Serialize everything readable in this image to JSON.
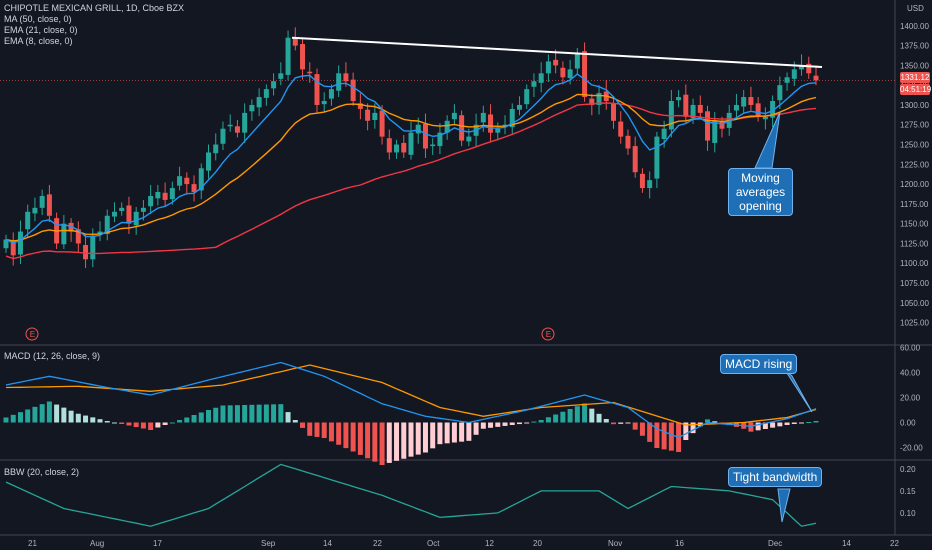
{
  "chart_data": {
    "type": "candlestick",
    "title": "CHIPOTLE MEXICAN GRILL, 1D, Cboe BZX",
    "currency": "USD",
    "price_axis": {
      "ticks": [
        1025,
        1050,
        1075,
        1100,
        1125,
        1150,
        1175,
        1200,
        1225,
        1250,
        1275,
        1300,
        1325,
        1350,
        1375,
        1400
      ],
      "ylim": [
        1003,
        1420
      ]
    },
    "x_axis_labels": [
      "21",
      "Aug",
      "17",
      "Sep",
      "14",
      "22",
      "Oct",
      "12",
      "20",
      "Nov",
      "16",
      "Dec",
      "14",
      "22"
    ],
    "last_price": "1331.12",
    "countdown": "04:51:19",
    "trendline": {
      "from": [
        "Sep 1",
        1385
      ],
      "to": [
        "Dec 10",
        1348
      ]
    },
    "candles": {
      "colors": {
        "up": "#26a69a",
        "down": "#ef5350"
      },
      "closes_approx": [
        1130,
        1110,
        1140,
        1165,
        1170,
        1185,
        1160,
        1125,
        1150,
        1140,
        1125,
        1105,
        1135,
        1140,
        1160,
        1165,
        1170,
        1150,
        1165,
        1170,
        1185,
        1190,
        1180,
        1195,
        1210,
        1200,
        1190,
        1220,
        1240,
        1250,
        1270,
        1275,
        1265,
        1290,
        1300,
        1310,
        1320,
        1330,
        1340,
        1385,
        1375,
        1345,
        1340,
        1300,
        1305,
        1320,
        1340,
        1330,
        1305,
        1295,
        1280,
        1290,
        1260,
        1240,
        1250,
        1240,
        1265,
        1275,
        1245,
        1250,
        1265,
        1280,
        1290,
        1255,
        1260,
        1275,
        1290,
        1265,
        1270,
        1275,
        1295,
        1300,
        1320,
        1330,
        1340,
        1355,
        1350,
        1335,
        1345,
        1365,
        1310,
        1300,
        1315,
        1305,
        1280,
        1260,
        1245,
        1215,
        1195,
        1205,
        1260,
        1270,
        1305,
        1310,
        1285,
        1300,
        1290,
        1255,
        1280,
        1270,
        1290,
        1300,
        1310,
        1300,
        1285,
        1285,
        1305,
        1325,
        1335,
        1345,
        1350,
        1340,
        1331
      ],
      "ma_overlays": [
        {
          "name": "MA (50, close, 0)",
          "color": "#f23645",
          "start": 1100,
          "end": 1290
        },
        {
          "name": "EMA (21, close, 0)",
          "color": "#ff9800",
          "start": 1105,
          "end": 1300
        },
        {
          "name": "EMA (8, close, 0)",
          "color": "#2196f3",
          "start": 1125,
          "end": 1315
        }
      ]
    },
    "earnings_markers": [
      "E",
      "E"
    ],
    "macd": {
      "label": "MACD (12, 26, close, 9)",
      "ticks": [
        "60.00",
        "40.00",
        "20.00",
        "0.00",
        "-20.00"
      ],
      "ylim": [
        -30,
        62
      ],
      "macd_line_color": "#2196f3",
      "signal_line_color": "#ff9800",
      "macd_key": [
        [
          0,
          30
        ],
        [
          6,
          37
        ],
        [
          14,
          28
        ],
        [
          20,
          22
        ],
        [
          28,
          34
        ],
        [
          38,
          48
        ],
        [
          44,
          37
        ],
        [
          52,
          15
        ],
        [
          58,
          5
        ],
        [
          64,
          0
        ],
        [
          72,
          10
        ],
        [
          80,
          22
        ],
        [
          86,
          12
        ],
        [
          90,
          -5
        ],
        [
          93,
          -12
        ],
        [
          97,
          0
        ],
        [
          103,
          -3
        ],
        [
          108,
          3
        ],
        [
          113,
          13
        ]
      ],
      "signal_key": [
        [
          0,
          28
        ],
        [
          10,
          29
        ],
        [
          20,
          25
        ],
        [
          30,
          30
        ],
        [
          42,
          46
        ],
        [
          52,
          32
        ],
        [
          60,
          12
        ],
        [
          66,
          5
        ],
        [
          74,
          12
        ],
        [
          84,
          16
        ],
        [
          94,
          -2
        ],
        [
          102,
          0
        ],
        [
          108,
          4
        ],
        [
          113,
          12
        ]
      ]
    },
    "bbw": {
      "label": "BBW (20, close, 2)",
      "ticks": [
        "0.20",
        "0.15",
        "0.10"
      ],
      "ylim": [
        0.05,
        0.22
      ],
      "color": "#26a69a",
      "key": [
        [
          0,
          0.17
        ],
        [
          8,
          0.11
        ],
        [
          20,
          0.07
        ],
        [
          28,
          0.11
        ],
        [
          38,
          0.21
        ],
        [
          44,
          0.18
        ],
        [
          52,
          0.14
        ],
        [
          60,
          0.09
        ],
        [
          68,
          0.1
        ],
        [
          74,
          0.15
        ],
        [
          82,
          0.15
        ],
        [
          86,
          0.11
        ],
        [
          92,
          0.16
        ],
        [
          100,
          0.15
        ],
        [
          106,
          0.13
        ],
        [
          110,
          0.07
        ],
        [
          113,
          0.08
        ]
      ]
    },
    "annotations": [
      {
        "text": "Moving averages opening"
      },
      {
        "text": "MACD rising"
      },
      {
        "text": "Tight bandwidth"
      }
    ]
  },
  "legend": {
    "symbol": "CHIPOTLE MEXICAN GRILL, 1D, Cboe BZX",
    "ma": "MA (50, close, 0)",
    "ema21": "EMA (21, close, 0)",
    "ema8": "EMA (8, close, 0)",
    "macd": "MACD (12, 26, close, 9)",
    "bbw": "BBW (20, close, 2)"
  },
  "callouts": {
    "ma_opening": "Moving averages opening",
    "macd_rising": "MACD rising",
    "tight_bandwidth": "Tight bandwidth"
  }
}
